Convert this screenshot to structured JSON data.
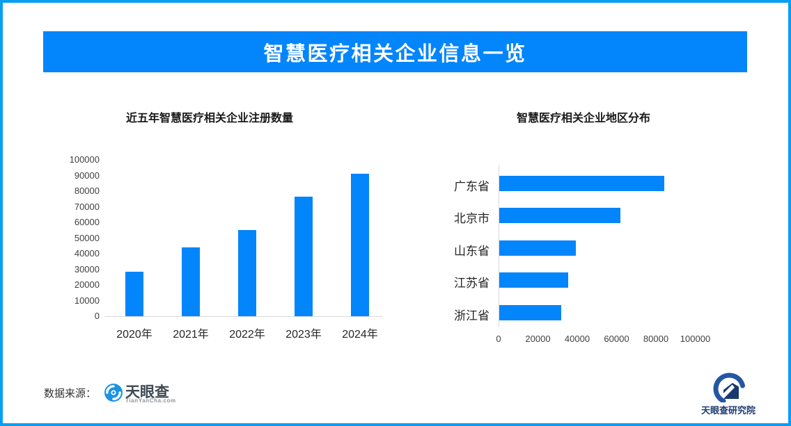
{
  "page": {
    "background": "#ffffff",
    "border_color": "#099ef4",
    "accent_color": "#0385fb",
    "axis_line_color": "#d9d9d9"
  },
  "banner": {
    "title": "智慧医疗相关企业信息一览"
  },
  "chart_data": [
    {
      "type": "bar",
      "orientation": "vertical",
      "title": "近五年智慧医疗相关企业注册数量",
      "categories": [
        "2020年",
        "2021年",
        "2022年",
        "2023年",
        "2024年"
      ],
      "values": [
        28500,
        44000,
        55000,
        76500,
        91000
      ],
      "xlabel": "",
      "ylabel": "",
      "ylim": [
        0,
        100000
      ],
      "ytick_step": 10000,
      "ytick_labels": [
        "0",
        "10000",
        "20000",
        "30000",
        "40000",
        "50000",
        "60000",
        "70000",
        "80000",
        "90000",
        "100000"
      ],
      "bar_color": "#0385fb",
      "grid": false,
      "legend_position": "none"
    },
    {
      "type": "bar",
      "orientation": "horizontal",
      "title": "智慧医疗相关企业地区分布",
      "categories": [
        "广东省",
        "北京市",
        "山东省",
        "江苏省",
        "浙江省"
      ],
      "values": [
        84000,
        61500,
        39000,
        35000,
        31500
      ],
      "xlabel": "",
      "ylabel": "",
      "xlim": [
        0,
        100000
      ],
      "xtick_step": 20000,
      "xtick_labels": [
        "0",
        "20000",
        "40000",
        "60000",
        "80000",
        "100000"
      ],
      "bar_color": "#0385fb",
      "grid": false,
      "legend_position": "none"
    }
  ],
  "footer": {
    "source_label": "数据来源：",
    "tianyancha": {
      "name": "天眼查",
      "subtext": "TianYanCha.com"
    },
    "institute": {
      "name": "天眼查研究院"
    }
  }
}
